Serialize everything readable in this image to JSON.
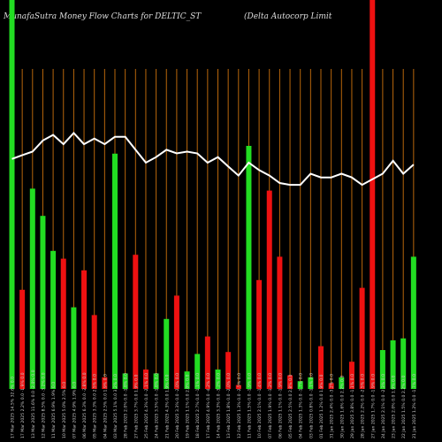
{
  "header": {
    "left": "MunafaSutra  Money Flow  Charts for DELTIC_ST",
    "right": "(Delta  Autocorp Limit"
  },
  "colors": {
    "background": "#000000",
    "up_bar": "#22dd22",
    "down_bar": "#ee1111",
    "grid_line": "#b8660b",
    "price_line": "#ffffff",
    "label": "#cccccc"
  },
  "chart_data": {
    "type": "bar",
    "title": "",
    "ylim": [
      0,
      100
    ],
    "grid": "vertical",
    "categories": [
      "17 Mar 2025 14.5% 32.6% 0.0",
      "17 Mar 2025 2.2% 0.0 -1.9% 0.0",
      "13 Mar 2025 11.6% 0.0 -2.0% 0.0",
      "12 Mar 2025 8.5% 0.0 -3.2% 0.0",
      "11 Mar 2025 6.9% 1.9% 0.0",
      "10 Mar 2025 5.0% 2.5% 0.0",
      "07 Mar 2025 4.9% 1.9% 0.0",
      "06 Mar 2025 6.3% 0.0 -2.8% 0.0",
      "05 Mar 2025 3.3% 0.0 2.5% 0.0",
      "04 Mar 2025 2.5% 0.0 1.9% 0.0",
      "03 Mar 2025 5.1% 0.0 3.2% 0.0",
      "28 Feb 2025 2.0% 0.0 -1.8% 0.0",
      "27 Feb 2025 3.7% 0.0 1.9% 0.0",
      "25 Feb 2025 4.3% 0.0 -2.1% 0.0",
      "24 Feb 2025 3.5% 0.0 -1.8% 0.0",
      "21 Feb 2025 4.3% 0.0 1.9% 0.0",
      "20 Feb 2025 3.3% 0.0 -2.0% 0.0",
      "19 Feb 2025 1.1% 0.0 2.0% 0.0",
      "18 Feb 2025 2.7% 0.0 -1.1% 0.0",
      "17 Feb 2025 4.9% 0.0 -4.2% 0.0",
      "14 Feb 2025 3.3% 0.0 -3.2% 0.0",
      "13 Feb 2025 1.8% 0.0 -2.0% 0.0",
      "12 Feb 2025 1.3% 0.0 -2.5% 0.0",
      "11 Feb 2025 1.5% 0.0 -1.9% 0.0",
      "10 Feb 2025 2.1% 0.0 -1.4% 0.0",
      "07 Feb 2025 1.9% 0.0 -1.2% 0.0",
      "06 Feb 2025 1.1% 0.0 -1.9% 0.0",
      "05 Feb 2025 2.5% 0.0 2.8% 0.0",
      "04 Feb 2025 1.3% 0.0 -1.7% 0.0",
      "03 Feb 2025 0.8% 0.0 -1.1% 0.0",
      "01 Feb 2025 1.2% 0.0 1.9% 0.0",
      "31 Jan 2025 2.4% 0.0 -3.2% 0.0",
      "30 Jan 2025 1.6% 0.0 2.2% 0.0",
      "29 Jan 2025 3.8% 0.0 -1.1% 0.0",
      "28 Jan 2025 2.2% 0.0 -2.5% 0.0",
      "27 Jan 2025 1.7% 0.0 -1.9% 0.0",
      "24 Jan 2025 2.1% 0.0 -2.3% 0.0",
      "23 Jan 2025 2.0% 0.0 1.9% 0.0",
      "22 Jan 2025 1.5% 0.0 2.2% 0.0",
      "21 Jan 2025 1.2% 0.0 -1.7% 0.0"
    ],
    "bars": [
      {
        "value": 100,
        "color": "green"
      },
      {
        "value": 25.5,
        "color": "red"
      },
      {
        "value": 51.5,
        "color": "green"
      },
      {
        "value": 44.5,
        "color": "green"
      },
      {
        "value": 35.5,
        "color": "green"
      },
      {
        "value": 33.5,
        "color": "red"
      },
      {
        "value": 21.0,
        "color": "green"
      },
      {
        "value": 30.5,
        "color": "red"
      },
      {
        "value": 19.0,
        "color": "red"
      },
      {
        "value": 3.0,
        "color": "red"
      },
      {
        "value": 60.5,
        "color": "green"
      },
      {
        "value": 4.0,
        "color": "green"
      },
      {
        "value": 34.5,
        "color": "red"
      },
      {
        "value": 5.0,
        "color": "red"
      },
      {
        "value": 4.0,
        "color": "green"
      },
      {
        "value": 18.0,
        "color": "green"
      },
      {
        "value": 24.0,
        "color": "red"
      },
      {
        "value": 4.5,
        "color": "green"
      },
      {
        "value": 9.0,
        "color": "green"
      },
      {
        "value": 13.5,
        "color": "red"
      },
      {
        "value": 5.0,
        "color": "green"
      },
      {
        "value": 9.5,
        "color": "red"
      },
      {
        "value": 1.0,
        "color": "red"
      },
      {
        "value": 62.5,
        "color": "green"
      },
      {
        "value": 28.0,
        "color": "red"
      },
      {
        "value": 51.0,
        "color": "red"
      },
      {
        "value": 34.0,
        "color": "red"
      },
      {
        "value": 3.5,
        "color": "red"
      },
      {
        "value": 2.0,
        "color": "green"
      },
      {
        "value": 3.0,
        "color": "green"
      },
      {
        "value": 11.0,
        "color": "red"
      },
      {
        "value": 1.5,
        "color": "red"
      },
      {
        "value": 3.0,
        "color": "green"
      },
      {
        "value": 7.0,
        "color": "red"
      },
      {
        "value": 26.0,
        "color": "red"
      },
      {
        "value": 100,
        "color": "red"
      },
      {
        "value": 10.0,
        "color": "green"
      },
      {
        "value": 12.5,
        "color": "green"
      },
      {
        "value": 13.0,
        "color": "green"
      },
      {
        "value": 34.0,
        "color": "green"
      }
    ],
    "price_line": [
      62,
      63,
      64,
      67,
      68.5,
      66,
      69,
      66,
      67.5,
      66,
      68,
      68,
      64.5,
      61,
      62.5,
      64.5,
      63.5,
      64,
      63.5,
      61,
      62.5,
      60,
      57.5,
      61,
      59,
      57.5,
      55.5,
      55,
      55,
      58,
      57,
      57,
      58,
      57,
      55,
      56.5,
      58,
      61.5,
      58,
      60.5
    ]
  }
}
